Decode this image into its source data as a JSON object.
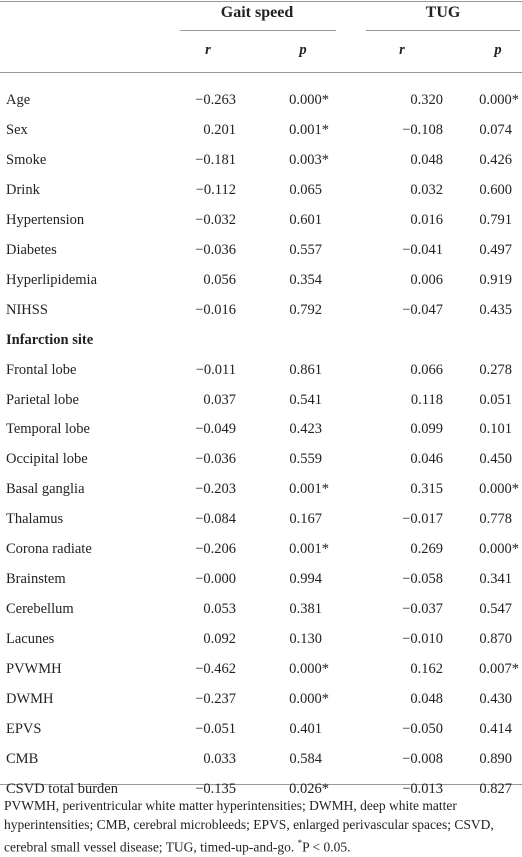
{
  "table": {
    "header": {
      "groups": [
        "Gait speed",
        "TUG"
      ],
      "columns": [
        "r",
        "p",
        "r",
        "p"
      ]
    },
    "rows": [
      [
        "Age",
        "−0.263",
        "0.000*",
        "0.320",
        "0.000*"
      ],
      [
        "Sex",
        "0.201",
        "0.001*",
        "−0.108",
        "0.074"
      ],
      [
        "Smoke",
        "−0.181",
        "0.003*",
        "0.048",
        "0.426"
      ],
      [
        "Drink",
        "−0.112",
        "0.065",
        "0.032",
        "0.600"
      ],
      [
        "Hypertension",
        "−0.032",
        "0.601",
        "0.016",
        "0.791"
      ],
      [
        "Diabetes",
        "−0.036",
        "0.557",
        "−0.041",
        "0.497"
      ],
      [
        "Hyperlipidemia",
        "0.056",
        "0.354",
        "0.006",
        "0.919"
      ],
      [
        "NIHSS",
        "−0.016",
        "0.792",
        "−0.047",
        "0.435"
      ],
      [
        "Infarction site"
      ],
      [
        "Frontal lobe",
        "−0.011",
        "0.861",
        "0.066",
        "0.278"
      ],
      [
        "Parietal lobe",
        "0.037",
        "0.541",
        "0.118",
        "0.051"
      ],
      [
        "Temporal lobe",
        "−0.049",
        "0.423",
        "0.099",
        "0.101"
      ],
      [
        "Occipital lobe",
        "−0.036",
        "0.559",
        "0.046",
        "0.450"
      ],
      [
        "Basal ganglia",
        "−0.203",
        "0.001*",
        "0.315",
        "0.000*"
      ],
      [
        "Thalamus",
        "−0.084",
        "0.167",
        "−0.017",
        "0.778"
      ],
      [
        "Corona radiate",
        "−0.206",
        "0.001*",
        "0.269",
        "0.000*"
      ],
      [
        "Brainstem",
        "−0.000",
        "0.994",
        "−0.058",
        "0.341"
      ],
      [
        "Cerebellum",
        "0.053",
        "0.381",
        "−0.037",
        "0.547"
      ],
      [
        "Lacunes",
        "0.092",
        "0.130",
        "−0.010",
        "0.870"
      ],
      [
        "PVWMH",
        "−0.462",
        "0.000*",
        "0.162",
        "0.007*"
      ],
      [
        "DWMH",
        "−0.237",
        "0.000*",
        "0.048",
        "0.430"
      ],
      [
        "EPVS",
        "−0.051",
        "0.401",
        "−0.050",
        "0.414"
      ],
      [
        "CMB",
        "0.033",
        "0.584",
        "−0.008",
        "0.890"
      ],
      [
        "CSVD total burden",
        "−0.135",
        "0.026*",
        "−0.013",
        "0.827"
      ]
    ],
    "footnote": {
      "text": "PVWMH, periventricular white matter hyperintensities; DWMH, deep white matter hyperintensities; CMB, cerebral microbleeds; EPVS, enlarged perivascular spaces; CSVD, cerebral small vessel disease; TUG, timed-up-and-go.",
      "mark": "*",
      "note": "P < 0.05."
    }
  }
}
